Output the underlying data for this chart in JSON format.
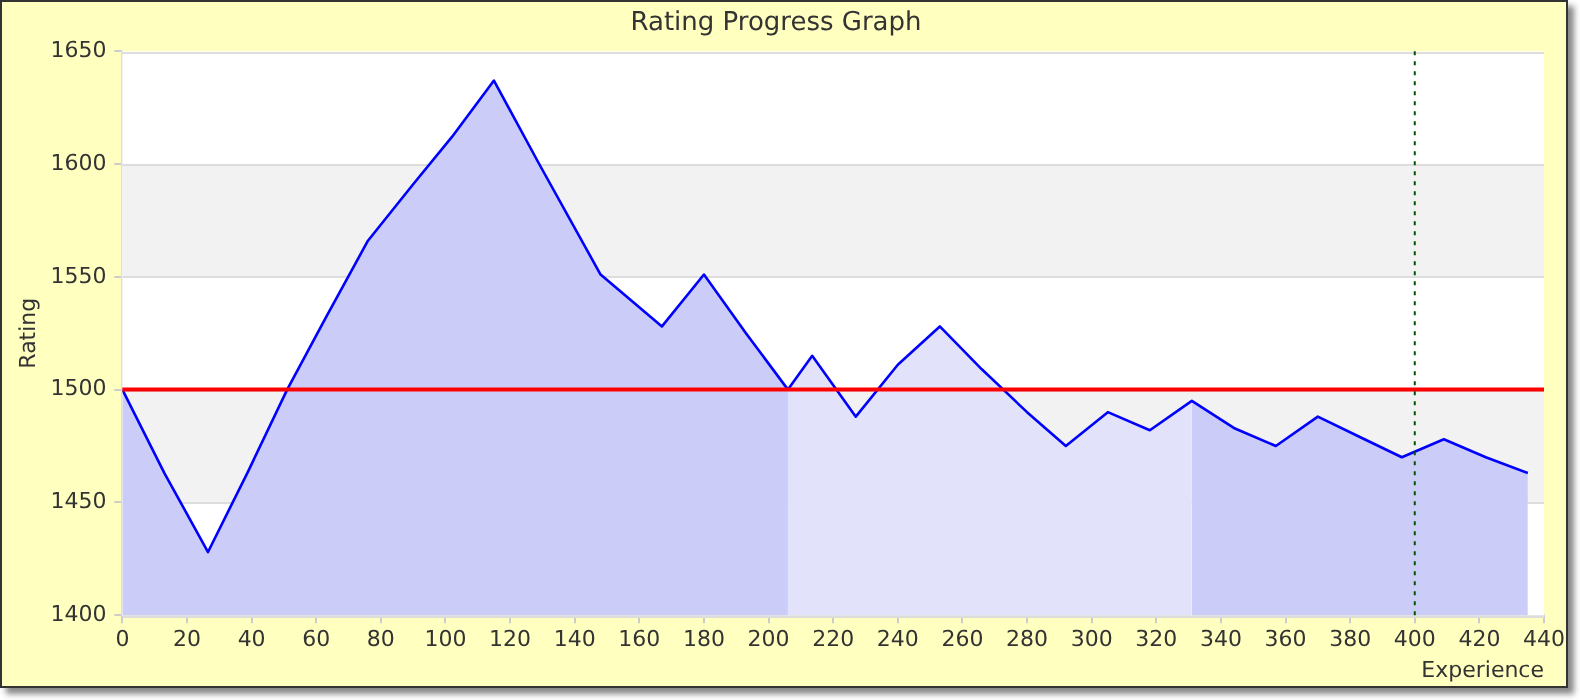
{
  "chart_data": {
    "type": "area",
    "title": "Rating Progress Graph",
    "xlabel": "Experience",
    "ylabel": "Rating",
    "series": [
      {
        "color": "#ccccf8",
        "x": [
          0,
          13,
          26.5,
          39,
          51,
          63,
          76,
          90,
          102,
          115,
          129,
          148,
          167,
          180,
          193,
          206
        ],
        "values": [
          1500,
          1463,
          1428,
          1464,
          1500,
          1532,
          1566,
          1591,
          1612,
          1637,
          1600,
          1551,
          1528,
          1551,
          1525,
          1500
        ]
      },
      {
        "color": "#e2e2fa",
        "x": [
          206,
          213.5,
          227,
          240,
          253,
          266,
          280,
          292,
          305,
          318,
          331
        ],
        "values": [
          1500,
          1515,
          1488,
          1511,
          1528,
          1509,
          1490,
          1475,
          1490,
          1482,
          1495
        ]
      },
      {
        "color": "#ccccf8",
        "x": [
          331,
          344,
          357,
          370,
          383,
          396,
          409,
          422,
          435
        ],
        "values": [
          1495,
          1483,
          1475,
          1488,
          1479,
          1470,
          1478,
          1470,
          1463
        ]
      },
      {
        "type": "line",
        "color": "#0000ff",
        "x": [
          0,
          13,
          26.5,
          39,
          51,
          63,
          76,
          90,
          102,
          115,
          129,
          148,
          167,
          180,
          193,
          206,
          213.5,
          227,
          240,
          253,
          266,
          280,
          292,
          305,
          318,
          331,
          344,
          357,
          370,
          383,
          396,
          409,
          422,
          435
        ],
        "values": [
          1500,
          1463,
          1428,
          1464,
          1500,
          1532,
          1566,
          1591,
          1612,
          1637,
          1600,
          1551,
          1528,
          1551,
          1525,
          1500,
          1515,
          1488,
          1511,
          1528,
          1509,
          1490,
          1475,
          1490,
          1482,
          1495,
          1483,
          1475,
          1488,
          1479,
          1470,
          1478,
          1470,
          1463
        ]
      }
    ],
    "xlim": [
      0,
      440
    ],
    "xticks": [
      0,
      20,
      40,
      60,
      80,
      100,
      120,
      140,
      160,
      180,
      200,
      220,
      240,
      260,
      280,
      300,
      320,
      340,
      360,
      380,
      400,
      420,
      440
    ],
    "ylim": [
      1400,
      1650
    ],
    "yticks": [
      1400,
      1450,
      1500,
      1550,
      1600,
      1650
    ],
    "ref_lines": [
      {
        "axis": "y",
        "value": 1500,
        "color": "#ff0000",
        "line_style": "solid"
      },
      {
        "axis": "x",
        "value": 400,
        "color": "#005500",
        "line_style": "dotted"
      }
    ],
    "grid": "y",
    "legend": false,
    "marker": "none"
  }
}
